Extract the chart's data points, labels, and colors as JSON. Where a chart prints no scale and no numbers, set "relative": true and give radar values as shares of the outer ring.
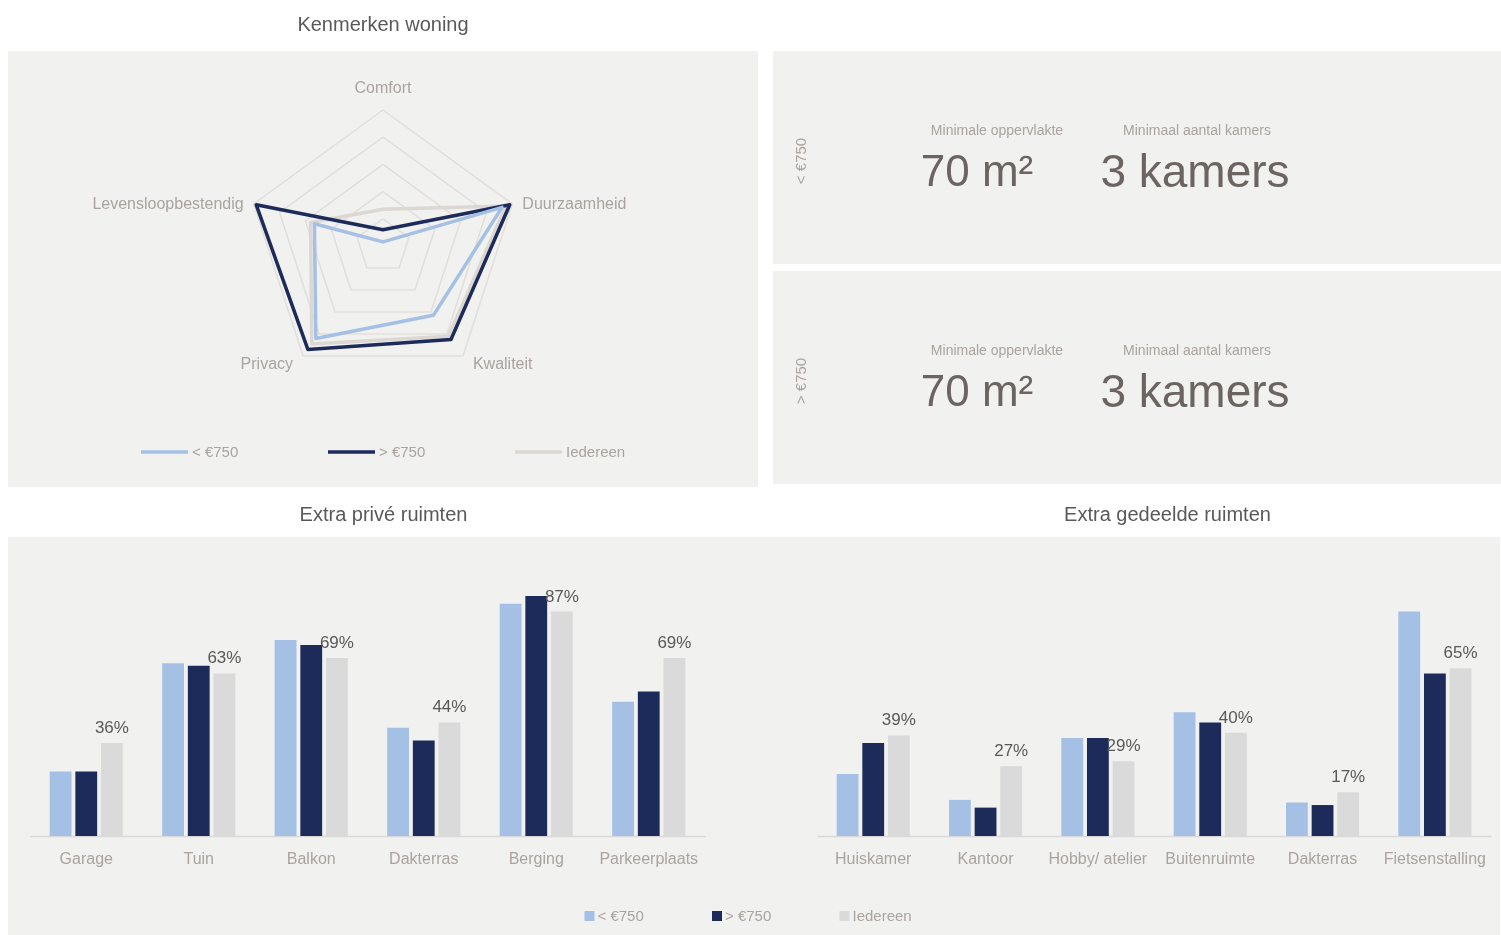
{
  "chart_data": [
    {
      "type": "radar",
      "title": "Kenmerken woning",
      "categories": [
        "Comfort",
        "Duurzaamheid",
        "Kwaliteit",
        "Privacy",
        "Levensloopbestendig"
      ],
      "relative": true,
      "grid": true,
      "legend": "bottom",
      "series": [
        {
          "name": "< €750",
          "color": "#a4c0e4",
          "values": [
            0.03,
            0.92,
            0.63,
            0.84,
            0.53
          ]
        },
        {
          "name": "> €750",
          "color": "#1d2b5b",
          "values": [
            0.12,
            0.98,
            0.85,
            0.94,
            0.98
          ]
        },
        {
          "name": "Iedereen",
          "color": "#dcd7d2",
          "values": [
            0.27,
            0.95,
            0.82,
            0.89,
            0.56
          ]
        }
      ]
    },
    {
      "type": "other",
      "annotations": [
        "< €750",
        "Minimale oppervlakte",
        "70 m²",
        "Minimaal aantal kamers",
        "3 kamers",
        "> €750",
        "Minimale oppervlakte",
        "70 m²",
        "Minimaal aantal kamers",
        "3 kamers"
      ]
    },
    {
      "type": "bar",
      "title": "Extra privé ruimten",
      "categories": [
        "Garage",
        "Tuin",
        "Balkon",
        "Dakterras",
        "Berging",
        "Parkeerplaats"
      ],
      "tick_labels": "x",
      "legend": "bottom",
      "series": [
        {
          "name": "< €750",
          "color": "#a4c0e4",
          "values": [
            25,
            67,
            76,
            42,
            90,
            52
          ]
        },
        {
          "name": "> €750",
          "color": "#1d2b5b",
          "values": [
            25,
            66,
            74,
            37,
            93,
            56
          ]
        },
        {
          "name": "Iedereen",
          "color": "#dadada",
          "values": [
            36,
            63,
            69,
            44,
            87,
            69
          ],
          "value_labels": [
            "36%",
            "63%",
            "69%",
            "44%",
            "87%",
            "69%"
          ]
        }
      ]
    },
    {
      "type": "bar",
      "title": "Extra gedeelde ruimten",
      "categories": [
        "Huiskamer",
        "Kantoor",
        "Hobby/ atelier",
        "Buitenruimte",
        "Dakterras",
        "Fietsenstalling"
      ],
      "tick_labels": "x",
      "series": [
        {
          "color": "#a4c0e4",
          "values": [
            24,
            14,
            38,
            48,
            13,
            87
          ]
        },
        {
          "color": "#1d2b5b",
          "values": [
            36,
            11,
            38,
            44,
            12,
            63
          ]
        },
        {
          "color": "#dadada",
          "values": [
            39,
            27,
            29,
            40,
            17,
            65
          ],
          "value_labels": [
            "39%",
            "27%",
            "29%",
            "40%",
            "17%",
            "65%"
          ]
        }
      ]
    }
  ]
}
